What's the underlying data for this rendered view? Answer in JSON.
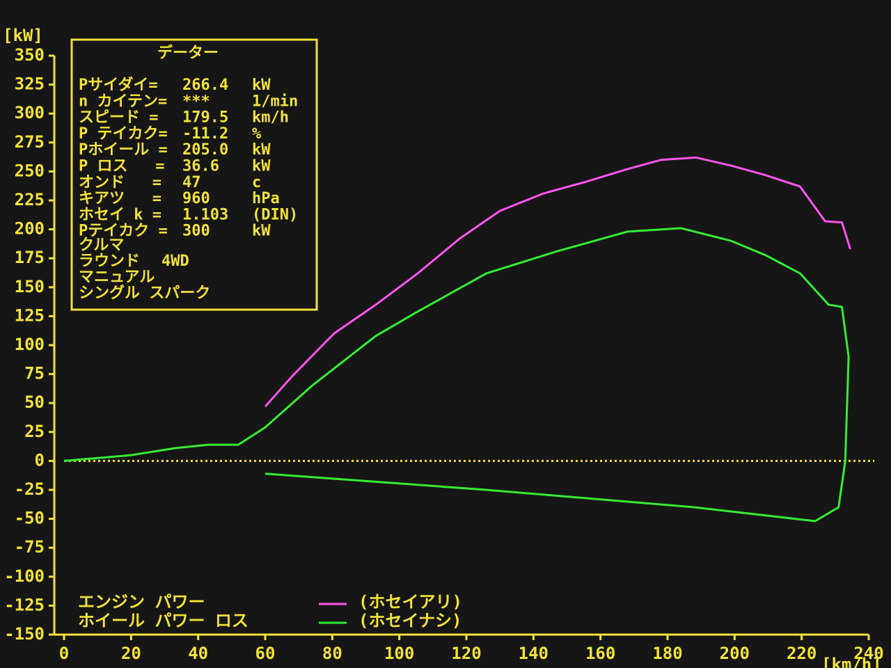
{
  "chart_data": {
    "type": "line",
    "y_label": "[kW]",
    "x_label": "[km/h]",
    "xlim": [
      0,
      240
    ],
    "xticks": [
      0,
      20,
      40,
      60,
      80,
      100,
      120,
      140,
      160,
      180,
      200,
      220,
      240
    ],
    "ylim": [
      -150,
      350
    ],
    "yticks": [
      -150,
      -125,
      -100,
      -75,
      -50,
      -25,
      0,
      25,
      50,
      75,
      100,
      125,
      150,
      175,
      200,
      225,
      250,
      275,
      300,
      325,
      350
    ],
    "zero_line": true,
    "series": [
      {
        "name": "(ホセイアリ)",
        "color": "#ff55ee",
        "x": [
          60,
          68,
          80.5,
          93,
          105.5,
          118,
          130,
          143,
          155.5,
          168,
          178,
          188.5,
          199,
          209,
          219.5,
          227,
          232,
          234.5
        ],
        "values": [
          47,
          73,
          110,
          135,
          162,
          192,
          216,
          231,
          241,
          252,
          260,
          262,
          255,
          247,
          237,
          207,
          206,
          183
        ]
      },
      {
        "name": "(ホセイナシ)",
        "color": "#33ee33",
        "x": [
          0,
          20,
          33,
          43,
          52,
          60,
          74,
          93,
          105.5,
          126,
          147,
          168,
          184,
          199,
          209,
          219.5,
          228,
          232,
          234,
          233,
          231,
          224,
          188,
          126,
          60
        ],
        "values": [
          0,
          5,
          11,
          14,
          14,
          29,
          65,
          108,
          129,
          162,
          181,
          198,
          201,
          190,
          178,
          162,
          135,
          133,
          90,
          0,
          -40,
          -52,
          -40,
          -25,
          -11
        ]
      }
    ],
    "footnotes": [
      "エンジン パワー",
      "ホイール パワー ロス"
    ],
    "info_box": {
      "title": "データー",
      "rows": [
        {
          "label": "Pサイダイ=",
          "value": "266.4",
          "unit": "kW"
        },
        {
          "label": "n カイテン=",
          "value": "***",
          "unit": "1/min"
        },
        {
          "label": "スピード =",
          "value": "179.5",
          "unit": "km/h"
        },
        {
          "label": "P テイカク=",
          "value": "-11.2",
          "unit": "%"
        },
        {
          "label": "Pホイール =",
          "value": "205.0",
          "unit": "kW"
        },
        {
          "label": "P ロス   =",
          "value": "36.6",
          "unit": "kW"
        },
        {
          "label": "オンド   =",
          "value": "47",
          "unit": "c"
        },
        {
          "label": "キアツ   =",
          "value": "960",
          "unit": "hPa"
        },
        {
          "label": "ホセイ k =",
          "value": "1.103",
          "unit": "(DIN)"
        },
        {
          "label": "Pテイカク =",
          "value": "300",
          "unit": "kW"
        }
      ],
      "car": "クルマ",
      "round": {
        "label": "ラウンド",
        "value": "4WD"
      },
      "lines": [
        "マニュアル",
        "シングル スパーク"
      ]
    }
  }
}
